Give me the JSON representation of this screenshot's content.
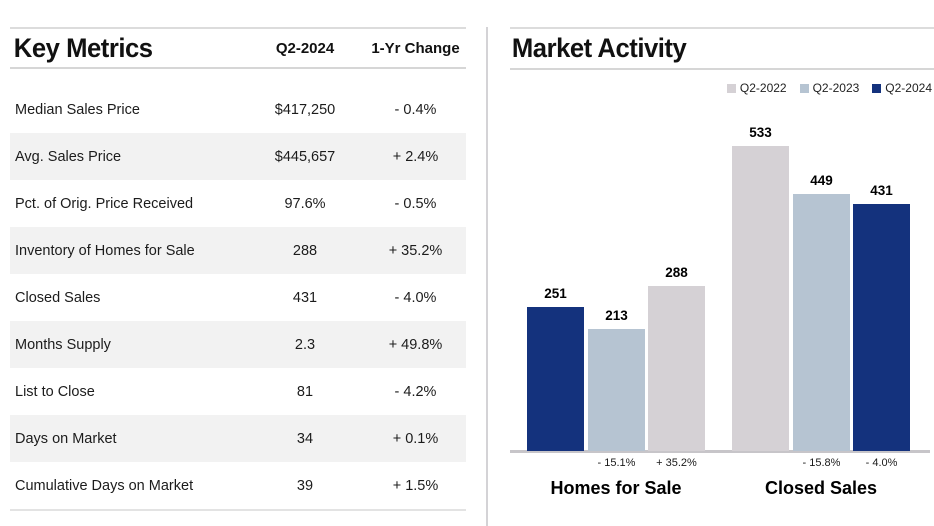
{
  "key_metrics": {
    "title": "Key Metrics",
    "columns": [
      "Q2-2024",
      "1-Yr Change"
    ],
    "rows": [
      {
        "label": "Median Sales Price",
        "value": "$417,250",
        "change": "- 0.4%"
      },
      {
        "label": "Avg. Sales Price",
        "value": "$445,657",
        "change": "+ 2.4%"
      },
      {
        "label": "Pct. of Orig. Price Received",
        "value": "97.6%",
        "change": "- 0.5%"
      },
      {
        "label": "Inventory of Homes for Sale",
        "value": "288",
        "change": "+ 35.2%"
      },
      {
        "label": "Closed Sales",
        "value": "431",
        "change": "- 4.0%"
      },
      {
        "label": "Months Supply",
        "value": "2.3",
        "change": "+ 49.8%"
      },
      {
        "label": "List to Close",
        "value": "81",
        "change": "- 4.2%"
      },
      {
        "label": "Days on Market",
        "value": "34",
        "change": "+ 0.1%"
      },
      {
        "label": "Cumulative Days on Market",
        "value": "39",
        "change": "+ 1.5%"
      }
    ]
  },
  "market_activity": {
    "title": "Market Activity"
  },
  "colors": {
    "navy": "#14327d",
    "light_blue": "#b6c4d2",
    "light_gray": "#d5d1d5",
    "row_shade": "#f2f2f2"
  },
  "chart_data": {
    "type": "bar",
    "title": "Market Activity",
    "legend_position": "top-right",
    "grid": false,
    "ylim": [
      0,
      560
    ],
    "legend": [
      {
        "label": "Q2-2022",
        "color": "#d5d1d5"
      },
      {
        "label": "Q2-2023",
        "color": "#b6c4d2"
      },
      {
        "label": "Q2-2024",
        "color": "#14327d"
      }
    ],
    "groups": [
      {
        "category": "Homes for Sale",
        "bars": [
          {
            "series": "Q2-2022",
            "value": 251,
            "color": "#14327d",
            "change": ""
          },
          {
            "series": "Q2-2023",
            "value": 213,
            "color": "#b6c4d2",
            "change": "- 15.1%"
          },
          {
            "series": "Q2-2024",
            "value": 288,
            "color": "#d5d1d5",
            "change": "+ 35.2%"
          }
        ]
      },
      {
        "category": "Closed Sales",
        "bars": [
          {
            "series": "Q2-2022",
            "value": 533,
            "color": "#d5d1d5",
            "change": ""
          },
          {
            "series": "Q2-2023",
            "value": 449,
            "color": "#b6c4d2",
            "change": "- 15.8%"
          },
          {
            "series": "Q2-2024",
            "value": 431,
            "color": "#14327d",
            "change": "- 4.0%"
          }
        ]
      }
    ]
  }
}
